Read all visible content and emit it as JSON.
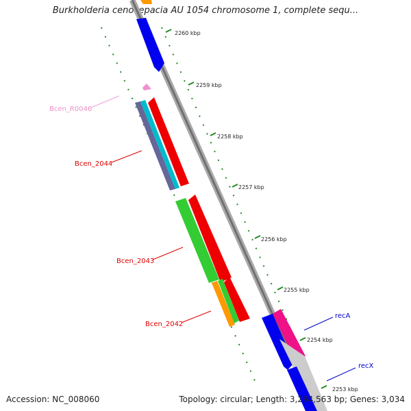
{
  "title": "Burkholderia cenocepacia AU 1054 chromosome 1, complete sequ...",
  "footer": {
    "accession": "Accession: NC_008060",
    "topology": "Topology: circular; Length: 3,294,563 bp; Genes: 3,034"
  },
  "kbp_marks": [
    "2260 kbp",
    "2259 kbp",
    "2258 kbp",
    "2257 kbp",
    "2256 kbp",
    "2255 kbp",
    "2254 kbp",
    "2253 kbp"
  ],
  "gene_labels": [
    {
      "name": "Bcen_R0046",
      "color": "#f080c8"
    },
    {
      "name": "Bcen_2044",
      "color": "#dd0000"
    },
    {
      "name": "Bcen_2043",
      "color": "#dd0000"
    },
    {
      "name": "Bcen_2042",
      "color": "#dd0000"
    },
    {
      "name": "recA",
      "color": "#0000cc"
    },
    {
      "name": "recX",
      "color": "#0000cc"
    }
  ],
  "colors": {
    "backbone": "#888888",
    "red": "#ee0000",
    "blue": "#0000ee",
    "green": "#33cc33",
    "orange": "#ff9900",
    "magenta": "#ee1188",
    "cyan": "#00bbcc",
    "slate": "#666699",
    "pink": "#f0a0d8",
    "tick": "#228822"
  }
}
